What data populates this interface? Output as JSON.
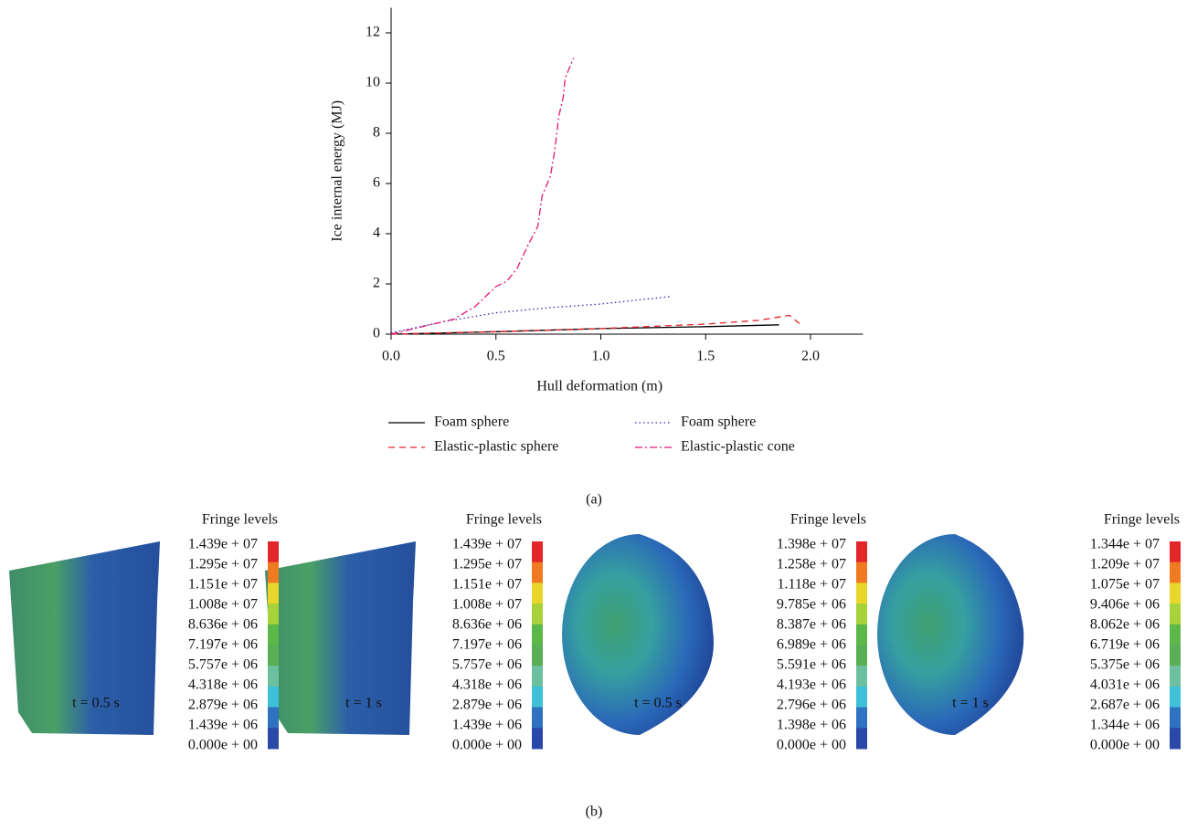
{
  "chart_data": {
    "type": "line",
    "xlabel": "Hull deformation (m)",
    "ylabel": "Ice internal energy (MJ)",
    "xlim": [
      0,
      2.25
    ],
    "ylim": [
      0,
      13
    ],
    "xticks": [
      {
        "value": 0,
        "label": "0.0"
      },
      {
        "value": 0.5,
        "label": "0.5"
      },
      {
        "value": 1,
        "label": "1.0"
      },
      {
        "value": 1.5,
        "label": "1.5"
      },
      {
        "value": 2,
        "label": "2.0"
      }
    ],
    "yticks": [
      0,
      2,
      4,
      6,
      8,
      10,
      12
    ],
    "series": [
      {
        "name": "Foam sphere",
        "color": "#000000",
        "linestyle": "solid",
        "x": [
          0,
          0.5,
          1.0,
          1.5,
          1.85
        ],
        "values": [
          0,
          0.1,
          0.22,
          0.3,
          0.37
        ]
      },
      {
        "name": "Foam sphere",
        "color": "#2b2bb8",
        "linestyle": "dotted",
        "x": [
          0,
          0.25,
          0.5,
          0.75,
          1.0,
          1.33
        ],
        "values": [
          0.05,
          0.5,
          0.85,
          1.05,
          1.2,
          1.5
        ]
      },
      {
        "name": "Elastic-plastic sphere",
        "color": "#e8202a",
        "linestyle": "dashed",
        "x": [
          0,
          0.5,
          1.0,
          1.5,
          1.75,
          1.9,
          1.95
        ],
        "values": [
          0,
          0.1,
          0.22,
          0.4,
          0.55,
          0.75,
          0.4
        ]
      },
      {
        "name": "Elastic-plastic cone",
        "color": "#e0187a",
        "linestyle": "dashdot",
        "x": [
          0,
          0.2,
          0.3,
          0.4,
          0.5,
          0.55,
          0.6,
          0.65,
          0.7,
          0.72,
          0.76,
          0.78,
          0.8,
          0.82,
          0.83,
          0.86,
          0.87
        ],
        "values": [
          0,
          0.4,
          0.6,
          1.1,
          1.9,
          2.1,
          2.6,
          3.5,
          4.3,
          5.5,
          6.3,
          7.3,
          8.7,
          9.4,
          10.2,
          10.8,
          11.0
        ]
      }
    ]
  },
  "captions": {
    "a": "(a)",
    "b": "(b)"
  },
  "panels": [
    {
      "title": "Fringe levels",
      "time": "t = 0.5 s",
      "levels": [
        "1.439e + 07",
        "1.295e + 07",
        "1.151e + 07",
        "1.008e + 07",
        "8.636e + 06",
        "7.197e + 06",
        "5.757e + 06",
        "4.318e + 06",
        "2.879e + 06",
        "1.439e + 06",
        "0.000e + 00"
      ]
    },
    {
      "title": "Fringe levels",
      "time": "t = 1 s",
      "levels": [
        "1.439e + 07",
        "1.295e + 07",
        "1.151e + 07",
        "1.008e + 07",
        "8.636e + 06",
        "7.197e + 06",
        "5.757e + 06",
        "4.318e + 06",
        "2.879e + 06",
        "1.439e + 06",
        "0.000e + 00"
      ]
    },
    {
      "title": "Fringe levels",
      "time": "t = 0.5 s",
      "levels": [
        "1.398e + 07",
        "1.258e + 07",
        "1.118e + 07",
        "9.785e + 06",
        "8.387e + 06",
        "6.989e + 06",
        "5.591e + 06",
        "4.193e + 06",
        "2.796e + 06",
        "1.398e + 06",
        "0.000e + 00"
      ]
    },
    {
      "title": "Fringe levels",
      "time": "t = 1 s",
      "levels": [
        "1.344e + 07",
        "1.209e + 07",
        "1.075e + 07",
        "9.406e + 06",
        "8.062e + 06",
        "6.719e + 06",
        "5.375e + 06",
        "4.031e + 06",
        "2.687e + 06",
        "1.344e + 06",
        "0.000e + 00"
      ]
    }
  ]
}
